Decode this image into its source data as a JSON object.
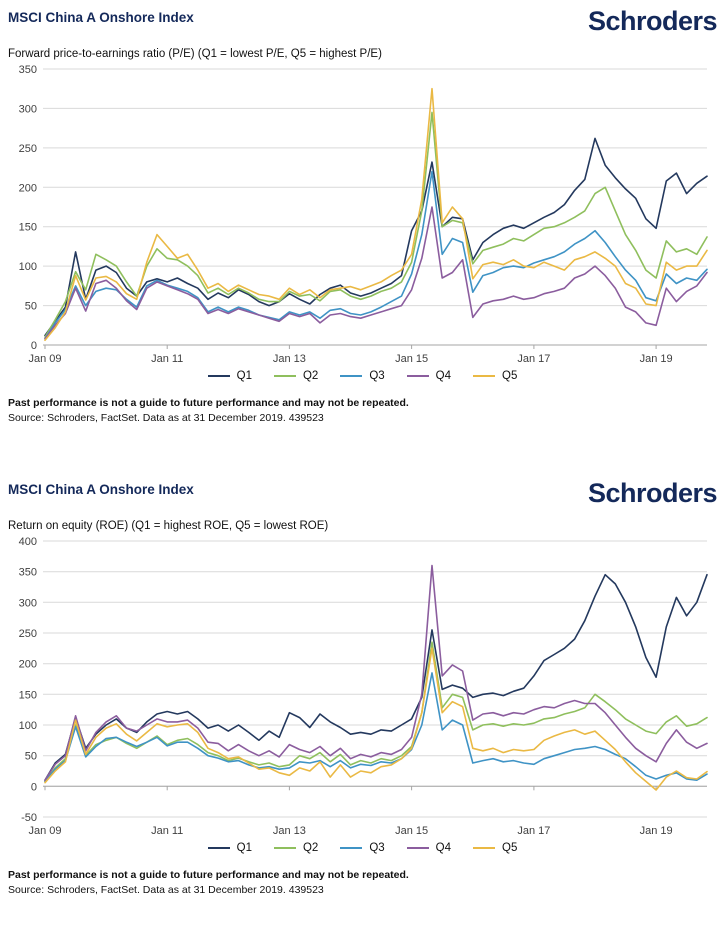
{
  "brand": {
    "wordmark": "Schroders",
    "color": "#14295a"
  },
  "axis_style": {
    "grid_color": "#d9d9d9",
    "axis_color": "#a6a6a6",
    "label_color": "#404040"
  },
  "charts": [
    {
      "title": "MSCI China A Onshore Index",
      "subtitle": "Forward price-to-earnings ratio (P/E) (Q1 = lowest P/E, Q5 = highest P/E)",
      "footnote_bold": "Past performance is not a guide to future performance and may not be repeated.",
      "footnote_source": "Source: Schroders, FactSet. Data as at 31 December 2019. 439523",
      "chart_data": {
        "type": "line",
        "title": "Forward price-to-earnings ratio (P/E) (Q1 = lowest P/E, Q5 = highest P/E)",
        "xlabel": "",
        "ylabel": "",
        "ylim": [
          0,
          350
        ],
        "ytick_step": 50,
        "grid": true,
        "legend_position": "bottom",
        "x_start": "Jan 2009",
        "x_end": "Nov 2019",
        "x_interval_months": 2,
        "x_tick_labels": [
          "Jan 09",
          "Jan 11",
          "Jan 13",
          "Jan 15",
          "Jan 17",
          "Jan 19"
        ],
        "x_tick_indices": [
          0,
          12,
          24,
          36,
          48,
          60
        ],
        "series": [
          {
            "name": "Q1",
            "color": "#24395e",
            "values": [
              12,
              30,
              48,
              118,
              58,
              95,
              100,
              92,
              72,
              62,
              80,
              84,
              80,
              85,
              78,
              72,
              58,
              66,
              60,
              70,
              64,
              55,
              50,
              55,
              65,
              58,
              52,
              64,
              72,
              76,
              66,
              62,
              66,
              72,
              78,
              88,
              145,
              170,
              232,
              150,
              162,
              160,
              108,
              130,
              140,
              148,
              152,
              148,
              155,
              162,
              168,
              178,
              196,
              210,
              262,
              228,
              212,
              198,
              186,
              160,
              148,
              208,
              218,
              192,
              205,
              214
            ]
          },
          {
            "name": "Q2",
            "color": "#8fbf5d",
            "values": [
              10,
              32,
              55,
              93,
              70,
              115,
              108,
              100,
              80,
              62,
              100,
              122,
              110,
              108,
              100,
              88,
              66,
              72,
              64,
              72,
              66,
              58,
              55,
              55,
              68,
              62,
              64,
              56,
              68,
              70,
              62,
              58,
              62,
              68,
              72,
              80,
              105,
              170,
              295,
              150,
              158,
              155,
              103,
              120,
              124,
              128,
              135,
              132,
              140,
              148,
              150,
              155,
              162,
              170,
              192,
              200,
              170,
              140,
              120,
              95,
              85,
              132,
              118,
              122,
              115,
              137
            ]
          },
          {
            "name": "Q3",
            "color": "#3f93c5",
            "values": [
              8,
              28,
              45,
              75,
              50,
              68,
              72,
              70,
              58,
              48,
              75,
              82,
              76,
              72,
              68,
              60,
              42,
              48,
              42,
              48,
              44,
              38,
              35,
              32,
              42,
              38,
              42,
              34,
              44,
              46,
              40,
              38,
              42,
              48,
              55,
              62,
              90,
              140,
              220,
              115,
              135,
              130,
              67,
              88,
              92,
              98,
              100,
              98,
              104,
              108,
              112,
              118,
              128,
              135,
              145,
              130,
              112,
              95,
              82,
              60,
              56,
              90,
              78,
              85,
              82,
              96
            ]
          },
          {
            "name": "Q4",
            "color": "#8b5d9e",
            "values": [
              8,
              25,
              40,
              72,
              43,
              78,
              82,
              72,
              56,
              45,
              72,
              80,
              75,
              70,
              65,
              58,
              40,
              45,
              40,
              46,
              42,
              38,
              34,
              30,
              40,
              36,
              40,
              28,
              38,
              40,
              36,
              34,
              38,
              42,
              46,
              50,
              70,
              110,
              175,
              85,
              92,
              108,
              35,
              52,
              56,
              58,
              62,
              58,
              60,
              65,
              68,
              72,
              85,
              90,
              100,
              88,
              72,
              48,
              42,
              28,
              25,
              72,
              55,
              68,
              75,
              92
            ]
          },
          {
            "name": "Q5",
            "color": "#eab944",
            "values": [
              6,
              22,
              42,
              88,
              57,
              85,
              87,
              80,
              65,
              58,
              105,
              140,
              125,
              110,
              115,
              95,
              72,
              78,
              68,
              76,
              70,
              64,
              62,
              58,
              72,
              64,
              70,
              60,
              70,
              72,
              74,
              70,
              75,
              80,
              88,
              95,
              115,
              185,
              325,
              155,
              175,
              160,
              84,
              102,
              105,
              102,
              108,
              100,
              98,
              105,
              100,
              95,
              108,
              112,
              118,
              110,
              100,
              78,
              72,
              52,
              50,
              105,
              95,
              100,
              100,
              120
            ]
          }
        ]
      }
    },
    {
      "title": "MSCI China A Onshore Index",
      "subtitle": "Return on equity (ROE) (Q1 = highest ROE, Q5 = lowest ROE)",
      "footnote_bold": "Past performance is not a guide to future performance and may not be repeated.",
      "footnote_source": "Source: Schroders, FactSet. Data as at 31 December 2019. 439523",
      "chart_data": {
        "type": "line",
        "title": "Return on equity (ROE) (Q1 = highest ROE, Q5 = lowest ROE)",
        "xlabel": "",
        "ylabel": "",
        "ylim": [
          -50,
          400
        ],
        "ytick_step": 50,
        "grid": true,
        "legend_position": "bottom",
        "x_start": "Jan 2009",
        "x_end": "Nov 2019",
        "x_interval_months": 2,
        "x_tick_labels": [
          "Jan 09",
          "Jan 11",
          "Jan 13",
          "Jan 15",
          "Jan 17",
          "Jan 19"
        ],
        "x_tick_indices": [
          0,
          12,
          24,
          36,
          48,
          60
        ],
        "series": [
          {
            "name": "Q1",
            "color": "#24395e",
            "values": [
              10,
              38,
              52,
              112,
              62,
              85,
              100,
              110,
              95,
              88,
              105,
              118,
              122,
              118,
              122,
              110,
              95,
              100,
              90,
              100,
              88,
              75,
              90,
              80,
              120,
              112,
              96,
              118,
              105,
              96,
              85,
              88,
              85,
              92,
              90,
              100,
              110,
              145,
              255,
              158,
              165,
              160,
              145,
              150,
              152,
              148,
              155,
              160,
              180,
              205,
              215,
              225,
              240,
              270,
              310,
              345,
              330,
              300,
              260,
              210,
              178,
              260,
              308,
              278,
              300,
              345
            ]
          },
          {
            "name": "Q2",
            "color": "#8fbf5d",
            "values": [
              8,
              30,
              45,
              100,
              50,
              68,
              75,
              80,
              70,
              62,
              72,
              82,
              68,
              75,
              78,
              68,
              55,
              50,
              42,
              46,
              40,
              35,
              38,
              32,
              35,
              50,
              45,
              55,
              40,
              52,
              35,
              42,
              38,
              45,
              42,
              50,
              65,
              120,
              235,
              128,
              150,
              145,
              92,
              100,
              102,
              98,
              102,
              100,
              103,
              110,
              112,
              118,
              122,
              128,
              150,
              138,
              125,
              110,
              100,
              90,
              86,
              105,
              115,
              98,
              102,
              112
            ]
          },
          {
            "name": "Q3",
            "color": "#3f93c5",
            "values": [
              8,
              28,
              42,
              97,
              48,
              65,
              78,
              80,
              72,
              65,
              72,
              80,
              66,
              72,
              72,
              62,
              50,
              46,
              40,
              42,
              35,
              30,
              32,
              28,
              30,
              40,
              38,
              42,
              32,
              42,
              30,
              36,
              34,
              40,
              38,
              45,
              60,
              100,
              185,
              92,
              108,
              100,
              38,
              42,
              45,
              40,
              42,
              38,
              36,
              45,
              50,
              55,
              60,
              62,
              65,
              60,
              52,
              45,
              32,
              18,
              12,
              18,
              22,
              12,
              10,
              20
            ]
          },
          {
            "name": "Q4",
            "color": "#8b5d9e",
            "values": [
              10,
              36,
              50,
              115,
              58,
              88,
              105,
              115,
              95,
              90,
              100,
              110,
              105,
              105,
              108,
              95,
              72,
              70,
              58,
              68,
              58,
              50,
              58,
              48,
              68,
              60,
              55,
              65,
              50,
              62,
              45,
              52,
              48,
              55,
              52,
              60,
              80,
              150,
              360,
              180,
              198,
              188,
              108,
              118,
              120,
              115,
              120,
              118,
              125,
              130,
              128,
              135,
              140,
              135,
              135,
              120,
              100,
              80,
              62,
              50,
              40,
              70,
              92,
              72,
              62,
              70
            ]
          },
          {
            "name": "Q5",
            "color": "#eab944",
            "values": [
              6,
              25,
              40,
              108,
              52,
              80,
              95,
              102,
              85,
              74,
              88,
              102,
              97,
              100,
              102,
              88,
              62,
              55,
              45,
              48,
              38,
              28,
              30,
              22,
              18,
              30,
              25,
              40,
              15,
              35,
              15,
              25,
              22,
              32,
              35,
              45,
              62,
              120,
              225,
              120,
              138,
              130,
              62,
              58,
              62,
              55,
              60,
              58,
              60,
              75,
              82,
              88,
              92,
              85,
              90,
              75,
              60,
              40,
              22,
              8,
              -6,
              15,
              25,
              14,
              12,
              24
            ]
          }
        ]
      }
    }
  ]
}
